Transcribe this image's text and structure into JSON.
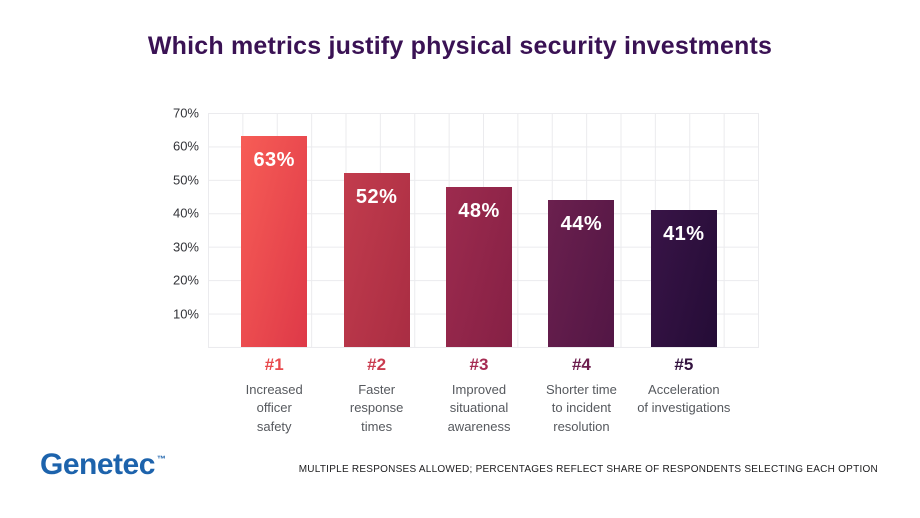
{
  "title": {
    "text": "Which metrics justify physical security investments",
    "color": "#3a1254"
  },
  "footnote": {
    "text": "MULTIPLE RESPONSES ALLOWED; PERCENTAGES REFLECT SHARE OF RESPONDENTS SELECTING EACH OPTION"
  },
  "logo": {
    "text": "Genetec",
    "tm": "™",
    "color": "#1d63ac"
  },
  "chart_data": {
    "type": "bar",
    "title": "Which metrics justify physical security investments",
    "categories": [
      "Increased officer safety",
      "Faster response times",
      "Improved situational awareness",
      "Shorter time to incident resolution",
      "Acceleration of investigations"
    ],
    "values": [
      63,
      52,
      48,
      44,
      41
    ],
    "xlabel": "",
    "ylabel": "",
    "ylim": [
      0,
      70
    ],
    "yticks": [
      10,
      20,
      30,
      40,
      50,
      60,
      70
    ],
    "ytick_suffix": "%",
    "grid": "both",
    "legend": "none",
    "grid_color": "#ebebee",
    "bars": [
      {
        "rank": "#1",
        "label_lines": "Increased\nofficer\nsafety",
        "value": 63,
        "value_label": "63%",
        "color": "#ee4a4e",
        "color_light": "#f75d56",
        "color_dark": "#de3948",
        "rank_color": "#e94a4d"
      },
      {
        "rank": "#2",
        "label_lines": "Faster\nresponse\ntimes",
        "value": 52,
        "value_label": "52%",
        "color": "#b53448",
        "color_light": "#c23c4d",
        "color_dark": "#a92d43",
        "rank_color": "#ca3c4f"
      },
      {
        "rank": "#3",
        "label_lines": "Improved\nsituational\nawareness",
        "value": 48,
        "value_label": "48%",
        "color": "#92254a",
        "color_light": "#9d2b4e",
        "color_dark": "#852045",
        "rank_color": "#a52b52"
      },
      {
        "rank": "#4",
        "label_lines": "Shorter time\nto incident\nresolution",
        "value": 44,
        "value_label": "44%",
        "color": "#5e1b49",
        "color_light": "#6b204e",
        "color_dark": "#521645",
        "rank_color": "#6d1d4e"
      },
      {
        "rank": "#5",
        "label_lines": "Acceleration\nof investigations",
        "value": 41,
        "value_label": "41%",
        "color": "#2e1040",
        "color_light": "#391447",
        "color_dark": "#240c36",
        "rank_color": "#33123f"
      }
    ]
  }
}
